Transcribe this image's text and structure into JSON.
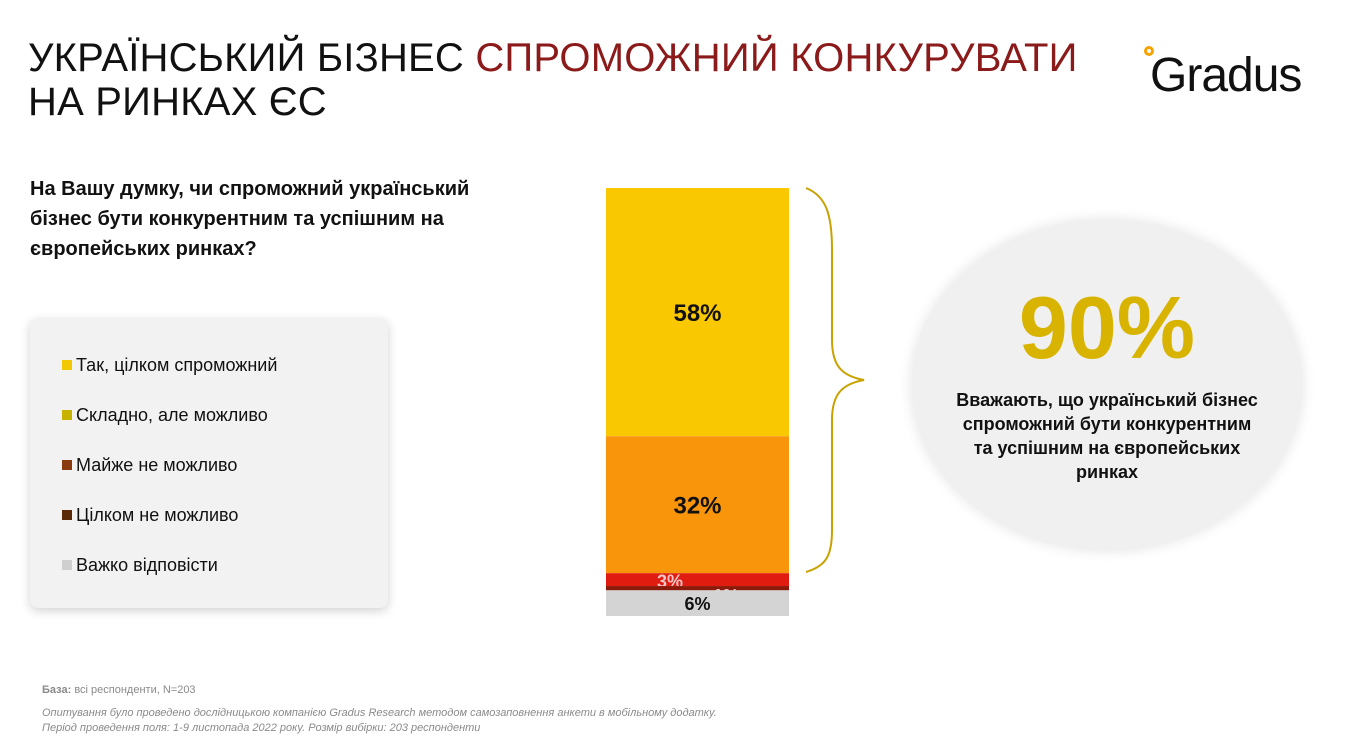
{
  "title": {
    "part1": "УКРАЇНСЬКИЙ БІЗНЕС ",
    "accent": "СПРОМОЖНИЙ КОНКУРУВАТИ",
    "line2": "НА РИНКАХ ЄС"
  },
  "logo": {
    "text": "Gradus"
  },
  "question": "На Вашу думку, чи спроможний український бізнес бути конкурентним та успішним на європейських ринках?",
  "legend": [
    {
      "label": "Так, цілком спроможний",
      "color": "#f2c900"
    },
    {
      "label": "Складно, але можливо",
      "color": "#c8b400"
    },
    {
      "label": "Майже не можливо",
      "color": "#8b3a10"
    },
    {
      "label": "Цілком не можливо",
      "color": "#5a2a08"
    },
    {
      "label": "Важко відповісти",
      "color": "#cfcfcf"
    }
  ],
  "chart_data": {
    "type": "bar",
    "stacked": true,
    "series": [
      {
        "value": 58,
        "label": "58%",
        "color": "#fac800"
      },
      {
        "value": 32,
        "label": "32%",
        "color": "#f8950a"
      },
      {
        "value": 3,
        "label": "3%",
        "color": "#e01b10"
      },
      {
        "value": 1,
        "label": "1%",
        "color": "#8b1a0a"
      },
      {
        "value": 6,
        "label": "6%",
        "color": "#d4d4d4"
      }
    ]
  },
  "summary": {
    "value": "90%",
    "text": "Вважають, що український бізнес спроможний бути конкурентним та успішним на європейських ринках"
  },
  "footnote": {
    "base_label": "База:",
    "base_text": " всі респонденти, N=203",
    "method": "Опитування було проведено дослідницькою компанією Gradus Research методом самозаповнення анкети в мобільному додатку.",
    "period": "Період проведення поля: 1-9 листопада 2022 року. Розмір вибірки: 203 респонденти"
  }
}
